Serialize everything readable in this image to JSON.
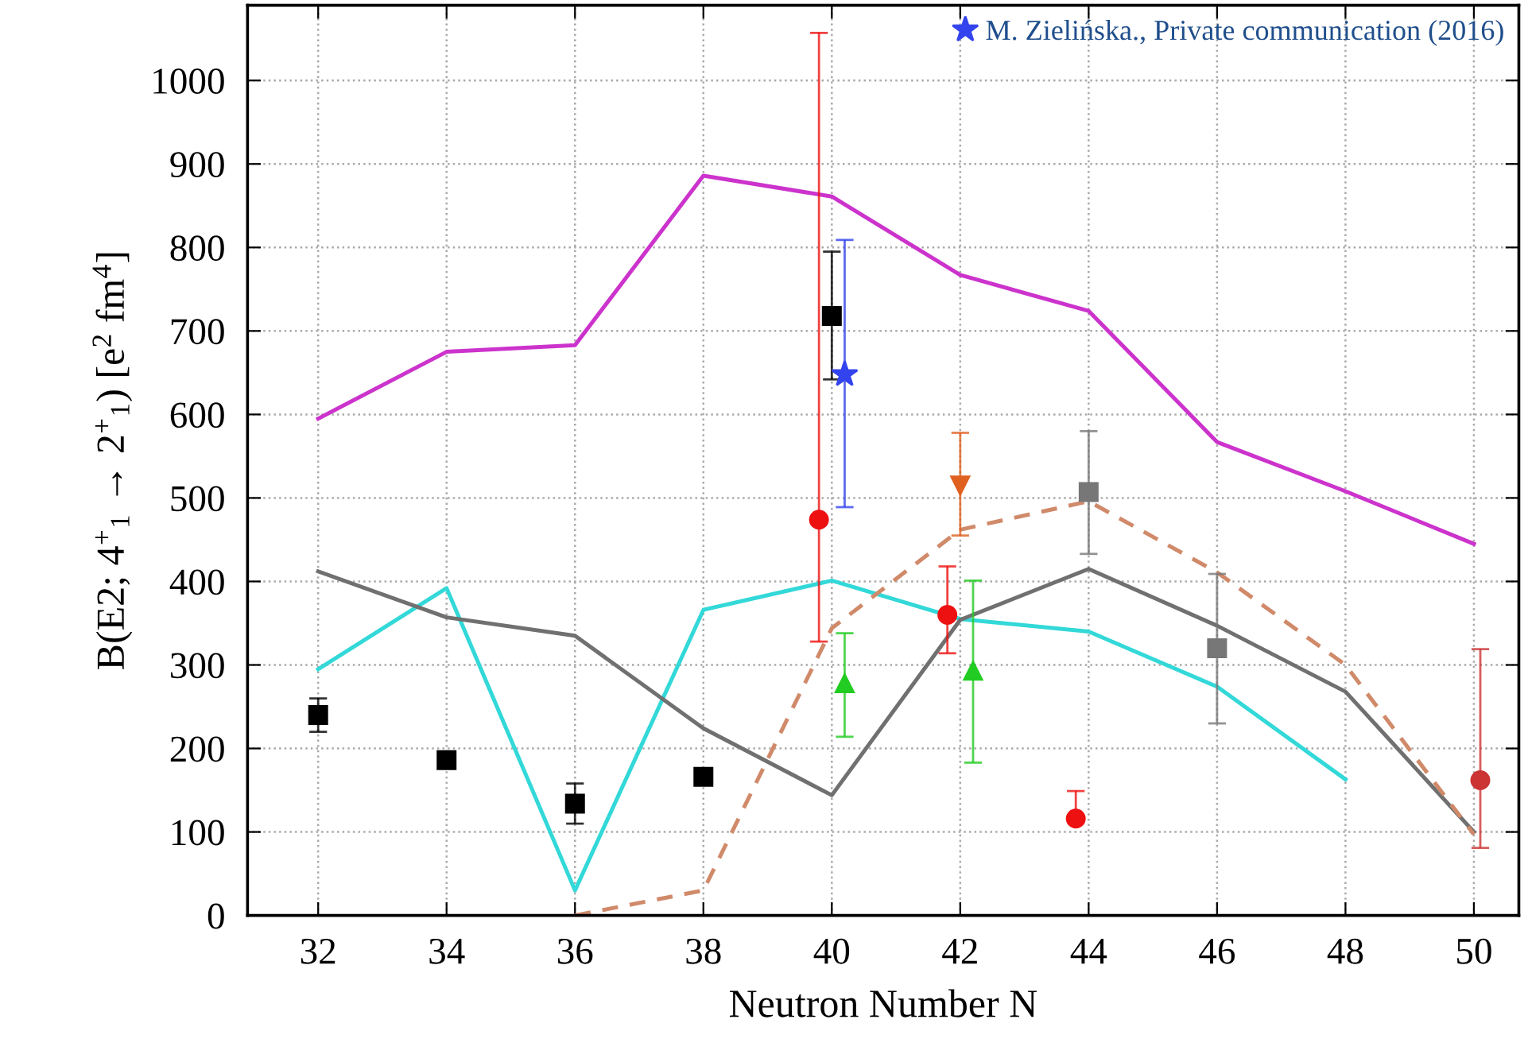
{
  "chart_data": {
    "type": "line",
    "xlabel": "Neutron Number N",
    "ylabel": "B(E2; 4$^{+}$$_{1}$ → 2$^{+}$$_{1}$) [e$^{2}$ fm$^{4}$]",
    "xlim": [
      30.9,
      50.7
    ],
    "ylim": [
      0,
      1090
    ],
    "xticks": [
      32,
      34,
      36,
      38,
      40,
      42,
      44,
      46,
      48,
      50
    ],
    "yticks": [
      0,
      100,
      200,
      300,
      400,
      500,
      600,
      700,
      800,
      900,
      1000
    ],
    "grid": true,
    "legend": "top right",
    "series": [
      {
        "color": "#cc33cc",
        "marker": "none",
        "line_style": "solid",
        "x": [
          32,
          34,
          36,
          38,
          40,
          42,
          44,
          46,
          48,
          50
        ],
        "values": [
          595,
          675,
          683,
          886,
          861,
          767,
          724,
          567,
          508,
          445
        ]
      },
      {
        "color": "#33d8d8",
        "marker": "none",
        "line_style": "solid",
        "x": [
          32,
          34,
          36,
          38,
          40,
          42,
          44,
          46,
          48
        ],
        "values": [
          295,
          392,
          30,
          366,
          401,
          355,
          340,
          274,
          163
        ]
      },
      {
        "color": "#707070",
        "marker": "none",
        "line_style": "solid",
        "x": [
          32,
          34,
          36,
          38,
          40,
          42,
          44,
          46,
          48,
          50
        ],
        "values": [
          412,
          357,
          335,
          224,
          144,
          354,
          415,
          347,
          268,
          100
        ]
      },
      {
        "color": "#d08a6a",
        "marker": "none",
        "line_style": "dashed",
        "x": [
          36,
          38,
          40,
          42,
          44,
          46,
          48,
          50
        ],
        "values": [
          0,
          30,
          344,
          462,
          496,
          411,
          300,
          97
        ]
      },
      {
        "type": "scatter",
        "color": "#000000",
        "marker": "square",
        "x": [
          32,
          34,
          36,
          38,
          40
        ],
        "values": [
          240,
          186,
          134,
          166,
          718
        ],
        "errors": [
          [
            220,
            260
          ],
          null,
          [
            110,
            158
          ],
          null,
          [
            642,
            795
          ]
        ]
      },
      {
        "type": "scatter",
        "name": "M. Zielińska., Private communication (2016)",
        "color": "#3344ee",
        "marker": "star",
        "x": [
          40.2
        ],
        "values": [
          648
        ],
        "errors": [
          [
            489,
            809
          ]
        ]
      },
      {
        "type": "scatter",
        "color": "#ee1111",
        "marker": "circle",
        "x": [
          39.8,
          41.8,
          43.8
        ],
        "values": [
          474,
          360,
          116
        ],
        "errors": [
          [
            328,
            1057
          ],
          [
            314,
            418
          ],
          [
            116,
            149
          ]
        ]
      },
      {
        "type": "scatter",
        "color": "#22cc22",
        "marker": "triangle",
        "x": [
          40.2,
          42.2
        ],
        "values": [
          278,
          293
        ],
        "errors": [
          [
            214,
            338
          ],
          [
            183,
            401
          ]
        ]
      },
      {
        "type": "scatter",
        "color": "#e06020",
        "marker": "triangle_down",
        "x": [
          42
        ],
        "values": [
          515
        ],
        "errors": [
          [
            455,
            578
          ]
        ]
      },
      {
        "type": "scatter",
        "color": "#777777",
        "marker": "square",
        "x": [
          44,
          46
        ],
        "values": [
          507,
          320
        ],
        "errors": [
          [
            433,
            580
          ],
          [
            230,
            409
          ]
        ]
      },
      {
        "type": "scatter",
        "color": "#cc3333",
        "marker": "circle",
        "x": [
          50.1
        ],
        "values": [
          162
        ],
        "errors": [
          [
            81,
            319
          ]
        ]
      }
    ]
  }
}
